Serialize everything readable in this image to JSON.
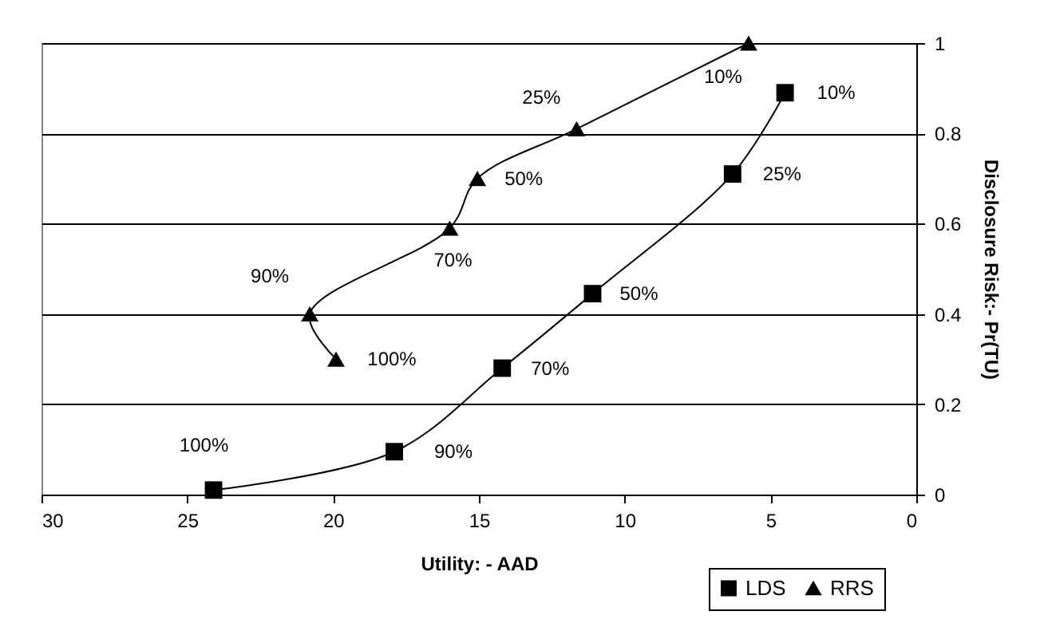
{
  "chart_data": {
    "type": "line",
    "xlabel": "Utility: - AAD",
    "ylabel": "Disclosure Risk:- Pr(TU)",
    "xlim": [
      30,
      0
    ],
    "xticks": [
      30,
      25,
      20,
      15,
      10,
      5,
      0
    ],
    "ylim": [
      0,
      1
    ],
    "yticks": [
      0,
      0.2,
      0.4,
      0.6,
      0.8,
      1
    ],
    "grid": "y",
    "legend": "bottom right",
    "series": [
      {
        "name": "LDS",
        "color": "#000000",
        "marker": "square",
        "x": [
          24.1,
          17.9,
          14.2,
          11.1,
          6.3,
          4.5
        ],
        "values": [
          0.01,
          0.095,
          0.28,
          0.445,
          0.71,
          0.89
        ]
      },
      {
        "name": "RRS",
        "color": "#000000",
        "marker": "triangle",
        "x": [
          19.9,
          20.8,
          16.0,
          15.05,
          11.65,
          5.75
        ],
        "values": [
          0.3,
          0.4,
          0.59,
          0.7,
          0.81,
          1.0
        ]
      }
    ],
    "annotations": [
      {
        "text": "100%",
        "x": 24.1,
        "y": 0.01
      },
      {
        "text": "90%",
        "x": 17.9,
        "y": 0.095
      },
      {
        "text": "70%",
        "x": 14.2,
        "y": 0.28
      },
      {
        "text": "50%",
        "x": 11.1,
        "y": 0.445
      },
      {
        "text": "25%",
        "x": 6.3,
        "y": 0.71
      },
      {
        "text": "10%",
        "x": 4.5,
        "y": 0.89
      },
      {
        "text": "100%",
        "x": 19.9,
        "y": 0.3
      },
      {
        "text": "90%",
        "x": 20.8,
        "y": 0.4
      },
      {
        "text": "70%",
        "x": 16.0,
        "y": 0.59
      },
      {
        "text": "50%",
        "x": 15.05,
        "y": 0.7
      },
      {
        "text": "25%",
        "x": 11.65,
        "y": 0.81
      },
      {
        "text": "10%",
        "x": 5.75,
        "y": 1.0
      }
    ]
  }
}
